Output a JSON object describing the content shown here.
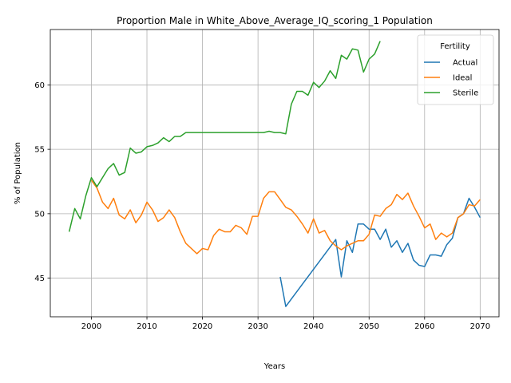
{
  "chart_data": {
    "type": "line",
    "title": "Proportion Male in White_Above_Average_IQ_scoring_1 Population",
    "xlabel": "Years",
    "ylabel": "% of Population",
    "xlim": [
      1992.6,
      2073.4
    ],
    "ylim": [
      42.0,
      64.3
    ],
    "xticks": [
      2000,
      2010,
      2020,
      2030,
      2040,
      2050,
      2060,
      2070
    ],
    "yticks": [
      45,
      50,
      55,
      60
    ],
    "grid": true,
    "legend": {
      "title": "Fertility",
      "position": "top-right"
    },
    "series": [
      {
        "name": "Actual",
        "color": "#1f77b4",
        "x": [
          2034,
          2035,
          2044,
          2045,
          2046,
          2047,
          2048,
          2049,
          2050,
          2051,
          2052,
          2053,
          2054,
          2055,
          2056,
          2057,
          2058,
          2059,
          2060,
          2061,
          2062,
          2063,
          2064,
          2065,
          2066,
          2067,
          2068,
          2069,
          2070
        ],
        "y": [
          45.1,
          42.8,
          48.0,
          45.1,
          47.9,
          47.0,
          49.2,
          49.2,
          48.8,
          48.8,
          48.0,
          48.8,
          47.4,
          47.9,
          47.0,
          47.7,
          46.4,
          46.0,
          45.9,
          46.8,
          46.8,
          46.7,
          47.6,
          48.1,
          49.7,
          50.0,
          51.2,
          50.5,
          49.7
        ]
      },
      {
        "name": "Ideal",
        "color": "#ff7f0e",
        "x": [
          2000,
          2001,
          2002,
          2003,
          2004,
          2005,
          2006,
          2007,
          2008,
          2009,
          2010,
          2011,
          2012,
          2013,
          2014,
          2015,
          2016,
          2017,
          2018,
          2019,
          2020,
          2021,
          2022,
          2023,
          2024,
          2025,
          2026,
          2027,
          2028,
          2029,
          2030,
          2031,
          2032,
          2033,
          2034,
          2035,
          2036,
          2037,
          2038,
          2039,
          2040,
          2041,
          2042,
          2043,
          2044,
          2045,
          2046,
          2047,
          2048,
          2049,
          2050,
          2051,
          2052,
          2053,
          2054,
          2055,
          2056,
          2057,
          2058,
          2059,
          2060,
          2061,
          2062,
          2063,
          2064,
          2065,
          2066,
          2067,
          2068,
          2069,
          2070
        ],
        "y": [
          52.6,
          52.0,
          50.9,
          50.4,
          51.2,
          49.9,
          49.6,
          50.3,
          49.3,
          49.9,
          50.9,
          50.3,
          49.4,
          49.7,
          50.3,
          49.7,
          48.6,
          47.7,
          47.3,
          46.9,
          47.3,
          47.2,
          48.3,
          48.8,
          48.6,
          48.6,
          49.1,
          48.9,
          48.4,
          49.8,
          49.8,
          51.2,
          51.7,
          51.7,
          51.1,
          50.5,
          50.3,
          49.8,
          49.2,
          48.5,
          49.6,
          48.5,
          48.7,
          47.9,
          47.5,
          47.2,
          47.5,
          47.7,
          47.9,
          47.9,
          48.4,
          49.9,
          49.8,
          50.4,
          50.7,
          51.5,
          51.1,
          51.6,
          50.6,
          49.8,
          48.9,
          49.2,
          48.0,
          48.5,
          48.2,
          48.5,
          49.7,
          50.0,
          50.7,
          50.6,
          51.1
        ]
      },
      {
        "name": "Sterile",
        "color": "#2ca02c",
        "x": [
          1996,
          1997,
          1998,
          1999,
          2000,
          2001,
          2002,
          2003,
          2004,
          2005,
          2006,
          2007,
          2008,
          2009,
          2010,
          2011,
          2012,
          2013,
          2014,
          2015,
          2016,
          2017,
          2018,
          2019,
          2020,
          2021,
          2022,
          2023,
          2024,
          2025,
          2026,
          2027,
          2028,
          2029,
          2030,
          2031,
          2032,
          2033,
          2034,
          2035,
          2036,
          2037,
          2038,
          2039,
          2040,
          2041,
          2042,
          2043,
          2044,
          2045,
          2046,
          2047,
          2048,
          2049,
          2050,
          2051,
          2052
        ],
        "y": [
          48.6,
          50.4,
          49.6,
          51.4,
          52.8,
          52.1,
          52.8,
          53.5,
          53.9,
          53.0,
          53.2,
          55.1,
          54.7,
          54.8,
          55.2,
          55.3,
          55.5,
          55.9,
          55.6,
          56.0,
          56.0,
          56.3,
          56.3,
          56.3,
          56.3,
          56.3,
          56.3,
          56.3,
          56.3,
          56.3,
          56.3,
          56.3,
          56.3,
          56.3,
          56.3,
          56.3,
          56.4,
          56.3,
          56.3,
          56.2,
          58.5,
          59.5,
          59.5,
          59.2,
          60.2,
          59.8,
          60.3,
          61.1,
          60.5,
          62.3,
          62.0,
          62.8,
          62.7,
          61.0,
          62.0,
          62.4,
          63.4
        ]
      }
    ]
  }
}
